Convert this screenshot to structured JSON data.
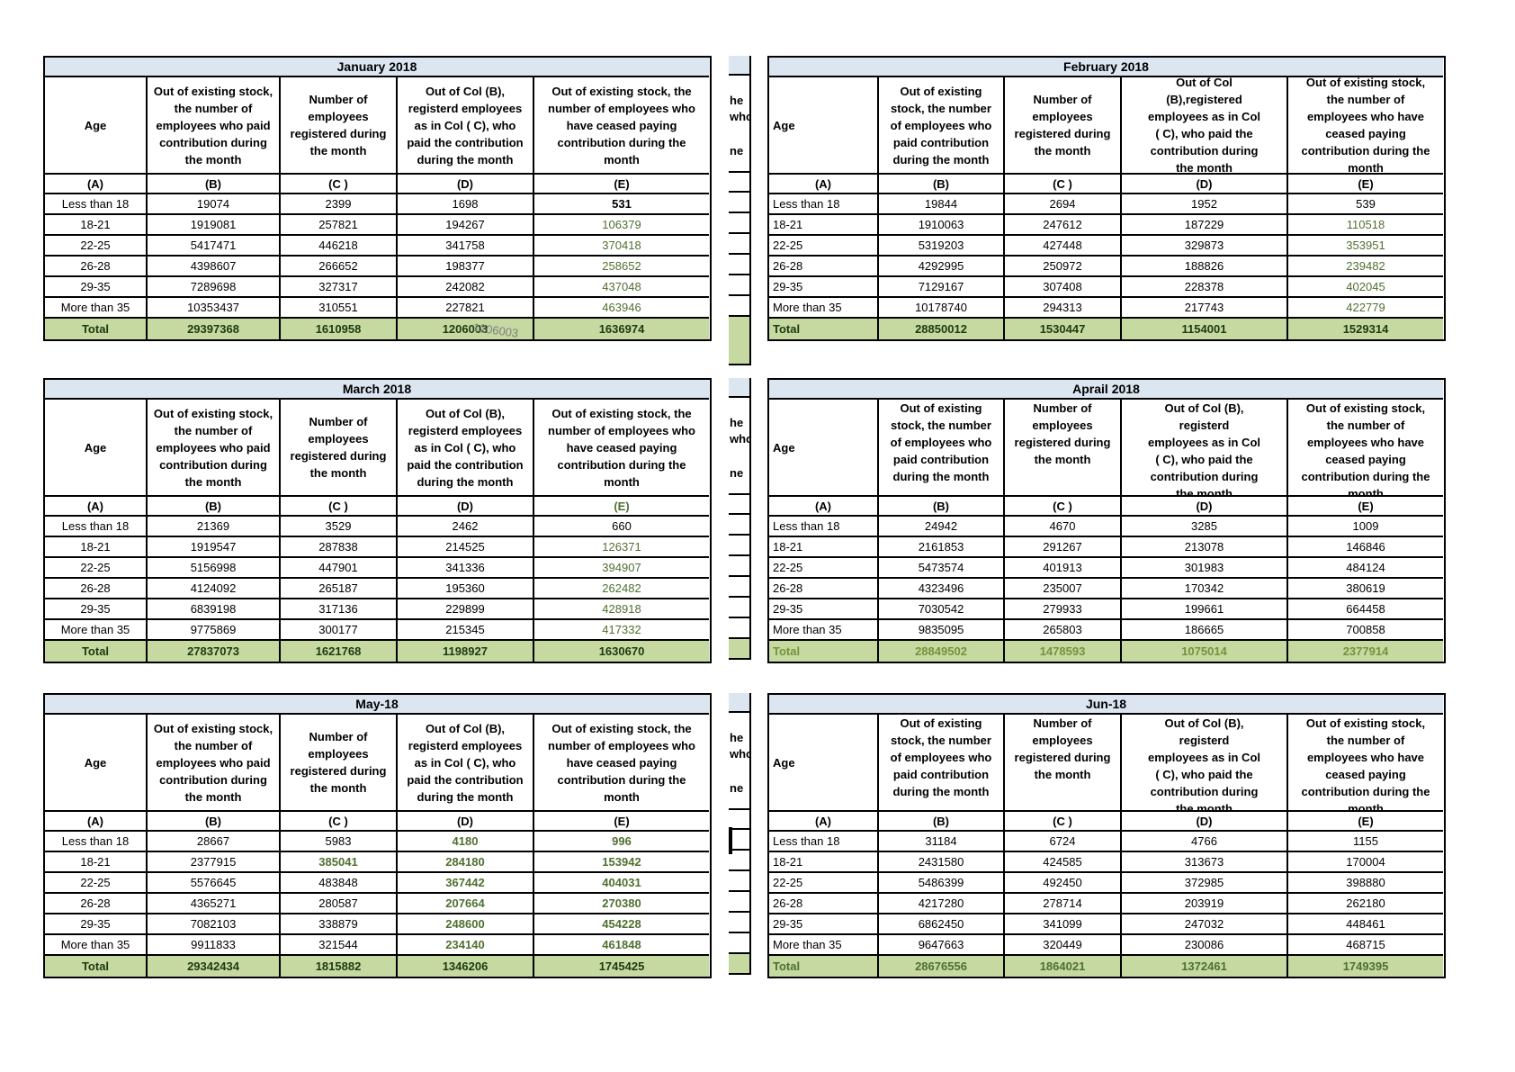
{
  "colors": {
    "title_bg": "#DCE6F1",
    "total_bg": "#C5D9A1",
    "green": "#4F7030",
    "dark_total": "#1E3A0F",
    "light_total": "#76923C",
    "overlay_gray": "#7F7F7F",
    "border": "#000000"
  },
  "column_letters": [
    "(A)",
    "(B)",
    "(C )",
    "(D)",
    "(E)"
  ],
  "total_label": "Total",
  "overlay_text": "1206003",
  "strip_fragments": [
    "he",
    "who",
    "ne"
  ],
  "tables": [
    {
      "id": "january-2018",
      "title": "January 2018",
      "side": "left",
      "band": 0,
      "clip": "fit",
      "headers": {
        "age": "Age",
        "b": "Out of existing stock,\nthe number of\nemployees who paid\ncontribution during\nthe month",
        "c": "Number of\nemployees\nregistered during\nthe month",
        "d": "Out of Col (B),\nregisterd employees\nas in Col ( C), who\npaid the contribution\nduring the month",
        "e": "Out of existing stock, the\nnumber of  employees  who\nhave ceased paying\ncontribution during the\nmonth"
      },
      "rows": [
        [
          "Less than 18",
          "19074",
          "2399",
          "1698",
          "531"
        ],
        [
          "18-21",
          "1919081",
          "257821",
          "194267",
          "106379"
        ],
        [
          "22-25",
          "5417471",
          "446218",
          "341758",
          "370418"
        ],
        [
          "26-28",
          "4398607",
          "266652",
          "198377",
          "258652"
        ],
        [
          "29-35",
          "7289698",
          "327317",
          "242082",
          "437048"
        ],
        [
          "More than 35",
          "10353437",
          "310551",
          "227821",
          "463946"
        ]
      ],
      "totals": [
        "29397368",
        "1610958",
        "1206003",
        "1636974"
      ],
      "styles": {
        "e_col": "green",
        "e_row0": "black-bold",
        "total": "dark"
      }
    },
    {
      "id": "february-2018",
      "title": "February 2018",
      "side": "right",
      "band": 0,
      "clip": "center",
      "headers": {
        "age": "Age",
        "b": "Out of existing\nstock, the number\nof employees who\npaid contribution\nduring the month",
        "c": "Number of\nemployees\nregistered during\nthe month",
        "d": "Out of Col\n(B),registered\nemployees as in Col\n( C), who paid the\ncontribution during\nthe month",
        "e": "Out of existing stock,\nthe number of\nemployees  who have\nceased paying\ncontribution during the\nmonth"
      },
      "rows": [
        [
          "Less than 18",
          "19844",
          "2694",
          "1952",
          "539"
        ],
        [
          "18-21",
          "1910063",
          "247612",
          "187229",
          "110518"
        ],
        [
          "22-25",
          "5319203",
          "427448",
          "329873",
          "353951"
        ],
        [
          "26-28",
          "4292995",
          "250972",
          "188826",
          "239482"
        ],
        [
          "29-35",
          "7129167",
          "307408",
          "228378",
          "402045"
        ],
        [
          "More than 35",
          "10178740",
          "294313",
          "217743",
          "422779"
        ]
      ],
      "totals": [
        "28850012",
        "1530447",
        "1154001",
        "1529314"
      ],
      "styles": {
        "e_col": "green",
        "e_row0": "black",
        "total": "dark"
      }
    },
    {
      "id": "march-2018",
      "title": "March 2018",
      "side": "left",
      "band": 1,
      "clip": "fit",
      "headers": {
        "age": "Age",
        "b": "Out of existing stock,\nthe number of\nemployees who paid\ncontribution during\nthe month",
        "c": "Number of\nemployees\nregistered during\nthe month",
        "d": "Out of Col (B),\nregisterd employees\nas in Col ( C), who\npaid the contribution\nduring the month",
        "e": "Out of existing stock, the\nnumber of  employees  who\nhave ceased paying\ncontribution during the\nmonth"
      },
      "rows": [
        [
          "Less than 18",
          "21369",
          "3529",
          "2462",
          "660"
        ],
        [
          "18-21",
          "1919547",
          "287838",
          "214525",
          "126371"
        ],
        [
          "22-25",
          "5156998",
          "447901",
          "341336",
          "394907"
        ],
        [
          "26-28",
          "4124092",
          "265187",
          "195360",
          "262482"
        ],
        [
          "29-35",
          "6839198",
          "317136",
          "229899",
          "428918"
        ],
        [
          "More than 35",
          "9775869",
          "300177",
          "215345",
          "417332"
        ]
      ],
      "totals": [
        "27837073",
        "1621768",
        "1198927",
        "1630670"
      ],
      "styles": {
        "e_col": "green",
        "e_row0": "black",
        "total": "dark",
        "e_letter_green": true
      }
    },
    {
      "id": "april-2018",
      "title": "Aprail 2018",
      "side": "right",
      "band": 1,
      "clip": "top",
      "headers": {
        "age": "Age",
        "b": "Out of existing\nstock, the number\nof employees who\npaid contribution\nduring the month",
        "c": "Number of\nemployees\nregistered during\nthe month",
        "d": "Out of Col (B),\nregisterd\nemployees as in Col\n( C), who paid the\ncontribution during\nthe month",
        "e": "Out of existing stock,\nthe number of\nemployees  who have\nceased paying\ncontribution during the\nmonth"
      },
      "rows": [
        [
          "Less than 18",
          "24942",
          "4670",
          "3285",
          "1009"
        ],
        [
          "18-21",
          "2161853",
          "291267",
          "213078",
          "146846"
        ],
        [
          "22-25",
          "5473574",
          "401913",
          "301983",
          "484124"
        ],
        [
          "26-28",
          "4323496",
          "235007",
          "170342",
          "380619"
        ],
        [
          "29-35",
          "7030542",
          "279933",
          "199661",
          "664458"
        ],
        [
          "More than 35",
          "9835095",
          "265803",
          "186665",
          "700858"
        ]
      ],
      "totals": [
        "28849502",
        "1478593",
        "1075014",
        "2377914"
      ],
      "styles": {
        "e_col": "black",
        "total": "light"
      }
    },
    {
      "id": "may-18",
      "title": "May-18",
      "side": "left",
      "band": 2,
      "clip": "fit",
      "headers": {
        "age": "Age",
        "b": "Out of existing stock,\nthe number of\nemployees who paid\ncontribution during\nthe month",
        "c": "Number of\nemployees\nregistered during\nthe month",
        "d": "Out of Col (B),\nregisterd employees\nas in Col ( C), who\npaid the contribution\nduring the month",
        "e": "Out of existing stock, the\nnumber of  employees  who\nhave ceased paying\ncontribution during the\nmonth"
      },
      "rows": [
        [
          "Less than 18",
          "28667",
          "5983",
          "4180",
          "996"
        ],
        [
          "18-21",
          "2377915",
          "385041",
          "284180",
          "153942"
        ],
        [
          "22-25",
          "5576645",
          "483848",
          "367442",
          "404031"
        ],
        [
          "26-28",
          "4365271",
          "280587",
          "207664",
          "270380"
        ],
        [
          "29-35",
          "7082103",
          "338879",
          "248600",
          "454228"
        ],
        [
          "More than 35",
          "9911833",
          "321544",
          "234140",
          "461848"
        ]
      ],
      "totals": [
        "29342434",
        "1815882",
        "1346206",
        "1745425"
      ],
      "styles": {
        "e_col": "green-bold",
        "d_col": "green-bold",
        "c_green_rows": [
          1
        ],
        "total": "dark"
      }
    },
    {
      "id": "jun-18",
      "title": "Jun-18",
      "side": "right",
      "band": 2,
      "clip": "top",
      "headers": {
        "age": "Age",
        "b": "Out of existing\nstock, the number\nof employees who\npaid contribution\nduring the month",
        "c": "Number of\nemployees\nregistered during\nthe month",
        "d": "Out of Col (B),\nregisterd\nemployees as in Col\n( C), who paid the\ncontribution during\nthe month",
        "e": "Out of existing stock,\nthe number of\nemployees  who have\nceased paying\ncontribution during the\nmonth"
      },
      "rows": [
        [
          "Less than 18",
          "31184",
          "6724",
          "4766",
          "1155"
        ],
        [
          "18-21",
          "2431580",
          "424585",
          "313673",
          "170004"
        ],
        [
          "22-25",
          "5486399",
          "492450",
          "372985",
          "398880"
        ],
        [
          "26-28",
          "4217280",
          "278714",
          "203919",
          "262180"
        ],
        [
          "29-35",
          "6862450",
          "341099",
          "247032",
          "448461"
        ],
        [
          "More than 35",
          "9647663",
          "320449",
          "230086",
          "468715"
        ]
      ],
      "totals": [
        "28676556",
        "1864021",
        "1372461",
        "1749395"
      ],
      "styles": {
        "e_col": "black",
        "total": "green"
      }
    }
  ]
}
